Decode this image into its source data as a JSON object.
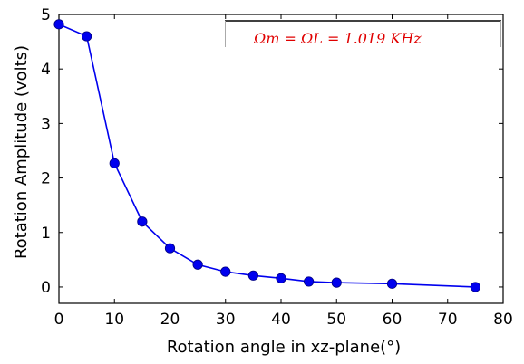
{
  "chart_data": {
    "type": "line",
    "title": "",
    "xlabel": "Rotation angle in xz-plane(°)",
    "ylabel": "Rotation Amplitude (volts)",
    "xlim": [
      0,
      80
    ],
    "ylim": [
      -0.3,
      5
    ],
    "x_ticks": [
      0,
      10,
      20,
      30,
      40,
      50,
      60,
      70,
      80
    ],
    "y_ticks": [
      0,
      1,
      2,
      3,
      4,
      5
    ],
    "grid": false,
    "annotation": "Ωm = ΩL = 1.019 KHz",
    "series": [
      {
        "color": "#0000ee",
        "marker": "circle",
        "x": [
          0,
          5,
          10,
          15,
          20,
          25,
          30,
          35,
          40,
          45,
          50,
          60,
          75
        ],
        "y": [
          4.82,
          4.6,
          2.27,
          1.2,
          0.71,
          0.41,
          0.28,
          0.21,
          0.16,
          0.1,
          0.08,
          0.06,
          0.0
        ]
      }
    ]
  }
}
